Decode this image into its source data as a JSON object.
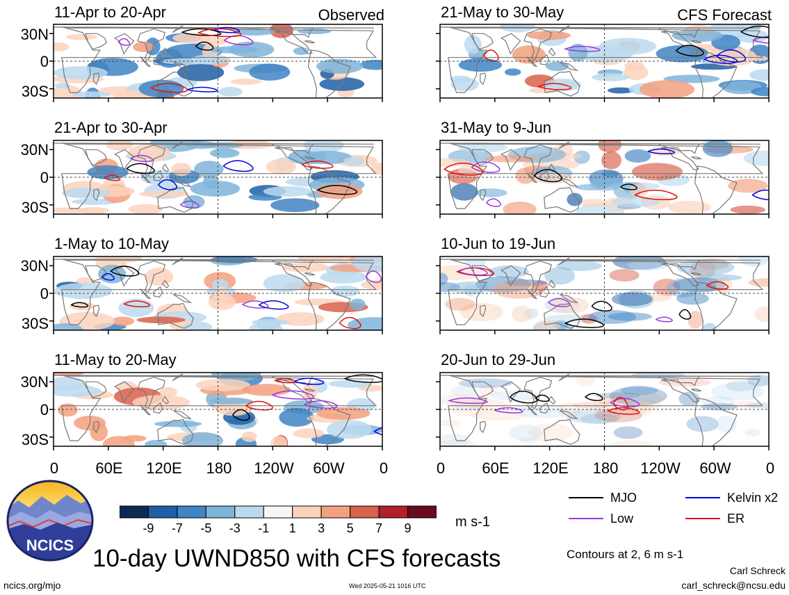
{
  "panels": [
    {
      "title": "11-Apr to 20-Apr",
      "tag": "Observed"
    },
    {
      "title": "21-Apr to 30-Apr",
      "tag": ""
    },
    {
      "title": "1-May to 10-May",
      "tag": ""
    },
    {
      "title": "11-May to 20-May",
      "tag": ""
    },
    {
      "title": "21-May to 30-May",
      "tag": "CFS Forecast"
    },
    {
      "title": "31-May to 9-Jun",
      "tag": ""
    },
    {
      "title": "10-Jun to 19-Jun",
      "tag": ""
    },
    {
      "title": "20-Jun to 29-Jun",
      "tag": ""
    }
  ],
  "lat_labels": [
    "30N",
    "0",
    "30S"
  ],
  "lon_labels": [
    "0",
    "60E",
    "120E",
    "180",
    "120W",
    "60W",
    "0"
  ],
  "colorbar": {
    "labels": [
      "-9",
      "-7",
      "-5",
      "-3",
      "-1",
      "1",
      "3",
      "5",
      "7",
      "9"
    ],
    "colors": [
      "#0d2a52",
      "#1f5fa6",
      "#3f84c4",
      "#7fb4d9",
      "#bcdaee",
      "#f7f7f7",
      "#fbd3bd",
      "#f3a07f",
      "#d9604c",
      "#b21f2f",
      "#6a0b1c"
    ],
    "units": "m s-1"
  },
  "legend": {
    "items": [
      {
        "label": "MJO",
        "color": "#000000"
      },
      {
        "label": "Kelvin x2",
        "color": "#0000dd"
      },
      {
        "label": "Low",
        "color": "#9a34e0"
      },
      {
        "label": "ER",
        "color": "#e01010"
      }
    ],
    "contours_note": "Contours at 2, 6 m s-1"
  },
  "main_title": "10-day UWND850 with CFS forecasts",
  "logo_text": "NCICS",
  "footer": {
    "left": "ncics.org/mjo",
    "center": "Wed 2025-05-21 1016 UTC",
    "author": "Carl Schreck",
    "email": "carl_schreck@ncsu.edu"
  }
}
